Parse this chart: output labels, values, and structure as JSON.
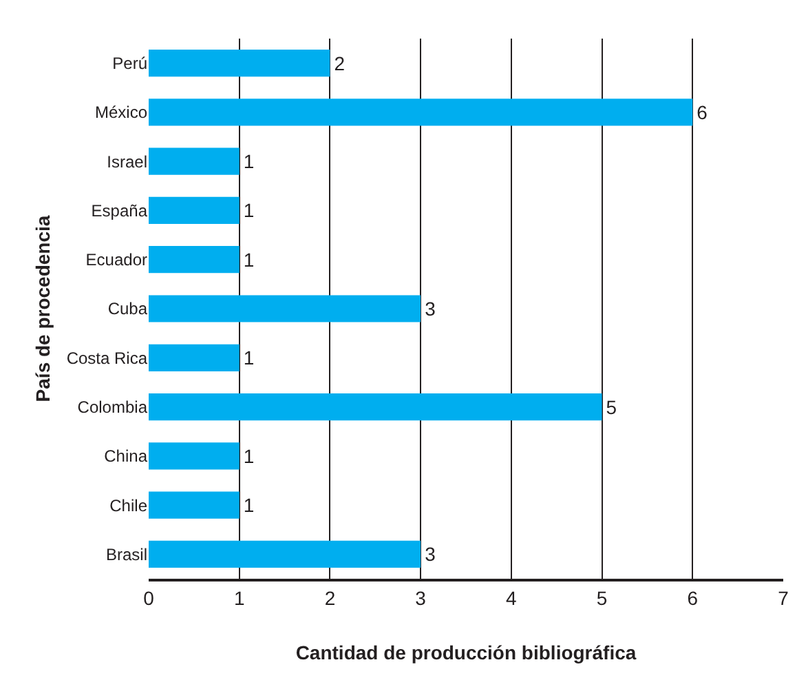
{
  "chart_data": {
    "type": "bar",
    "orientation": "horizontal",
    "ylabel": "País de procedencia",
    "xlabel": "Cantidad de producción bibliográfica",
    "categories": [
      "Perú",
      "México",
      "Israel",
      "España",
      "Ecuador",
      "Cuba",
      "Costa Rica",
      "Colombia",
      "China",
      "Chile",
      "Brasil"
    ],
    "values": [
      2,
      6,
      1,
      1,
      1,
      3,
      1,
      5,
      1,
      1,
      3
    ],
    "color": "#00aeef",
    "xlim": [
      0,
      7
    ],
    "xticks": [
      0,
      1,
      2,
      3,
      4,
      5,
      6,
      7
    ],
    "grid": "x",
    "legend": false,
    "data_labels": true
  }
}
